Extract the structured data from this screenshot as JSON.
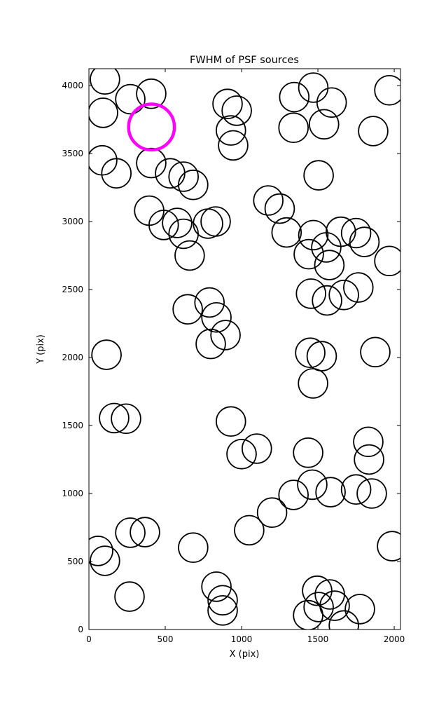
{
  "figure": {
    "title": "FWHM of PSF sources",
    "xlabel": "X (pix)",
    "ylabel": "Y (pix)"
  },
  "chart_data": {
    "type": "scatter",
    "title": "FWHM of PSF sources",
    "xlabel": "X (pix)",
    "ylabel": "Y (pix)",
    "xlim": [
      0,
      2041
    ],
    "ylim": [
      0,
      4124
    ],
    "x_ticks": [
      0,
      500,
      1000,
      1500,
      2000
    ],
    "y_ticks": [
      0,
      500,
      1000,
      1500,
      2000,
      2500,
      3000,
      3500,
      4000
    ],
    "grid": false,
    "legend": "none",
    "marker_style": "open-circle",
    "default_radius": 96,
    "default_color": "#000000",
    "default_linewidth": 1.8,
    "highlight": {
      "x": 410,
      "y": 3695,
      "r": 150,
      "color": "#ff00ff",
      "linewidth": 4.5
    },
    "points": [
      {
        "x": 105,
        "y": 4045
      },
      {
        "x": 92,
        "y": 3800
      },
      {
        "x": 271,
        "y": 3900
      },
      {
        "x": 408,
        "y": 3940
      },
      {
        "x": 908,
        "y": 3865
      },
      {
        "x": 968,
        "y": 3815
      },
      {
        "x": 930,
        "y": 3670
      },
      {
        "x": 945,
        "y": 3560
      },
      {
        "x": 1345,
        "y": 3915
      },
      {
        "x": 1470,
        "y": 3985
      },
      {
        "x": 1590,
        "y": 3875
      },
      {
        "x": 1340,
        "y": 3690
      },
      {
        "x": 1540,
        "y": 3715
      },
      {
        "x": 1968,
        "y": 3965
      },
      {
        "x": 1862,
        "y": 3665
      },
      {
        "x": 87,
        "y": 3450
      },
      {
        "x": 180,
        "y": 3355
      },
      {
        "x": 408,
        "y": 3430
      },
      {
        "x": 532,
        "y": 3355
      },
      {
        "x": 620,
        "y": 3330
      },
      {
        "x": 683,
        "y": 3270
      },
      {
        "x": 1505,
        "y": 3340
      },
      {
        "x": 395,
        "y": 3080
      },
      {
        "x": 490,
        "y": 2975
      },
      {
        "x": 578,
        "y": 2990
      },
      {
        "x": 620,
        "y": 2910
      },
      {
        "x": 780,
        "y": 2985
      },
      {
        "x": 830,
        "y": 3000
      },
      {
        "x": 1175,
        "y": 3155
      },
      {
        "x": 1250,
        "y": 3095
      },
      {
        "x": 1295,
        "y": 2920
      },
      {
        "x": 660,
        "y": 2750
      },
      {
        "x": 1470,
        "y": 2900
      },
      {
        "x": 1555,
        "y": 2810
      },
      {
        "x": 1650,
        "y": 2925
      },
      {
        "x": 1750,
        "y": 2915
      },
      {
        "x": 1805,
        "y": 2850
      },
      {
        "x": 1440,
        "y": 2760
      },
      {
        "x": 1575,
        "y": 2680
      },
      {
        "x": 1968,
        "y": 2710
      },
      {
        "x": 1455,
        "y": 2470
      },
      {
        "x": 1560,
        "y": 2420
      },
      {
        "x": 1670,
        "y": 2460
      },
      {
        "x": 1765,
        "y": 2515
      },
      {
        "x": 790,
        "y": 2405
      },
      {
        "x": 835,
        "y": 2295
      },
      {
        "x": 647,
        "y": 2355
      },
      {
        "x": 895,
        "y": 2165
      },
      {
        "x": 798,
        "y": 2100
      },
      {
        "x": 115,
        "y": 2020
      },
      {
        "x": 1450,
        "y": 2035
      },
      {
        "x": 1525,
        "y": 2010
      },
      {
        "x": 1876,
        "y": 2040
      },
      {
        "x": 1468,
        "y": 1810
      },
      {
        "x": 165,
        "y": 1555
      },
      {
        "x": 243,
        "y": 1550
      },
      {
        "x": 930,
        "y": 1530
      },
      {
        "x": 1000,
        "y": 1290
      },
      {
        "x": 1100,
        "y": 1330
      },
      {
        "x": 1436,
        "y": 1300
      },
      {
        "x": 1830,
        "y": 1380
      },
      {
        "x": 1835,
        "y": 1250
      },
      {
        "x": 1340,
        "y": 990
      },
      {
        "x": 1463,
        "y": 1065
      },
      {
        "x": 1583,
        "y": 1010
      },
      {
        "x": 1750,
        "y": 1030
      },
      {
        "x": 1853,
        "y": 1000
      },
      {
        "x": 1200,
        "y": 860
      },
      {
        "x": 1050,
        "y": 730
      },
      {
        "x": 271,
        "y": 712
      },
      {
        "x": 367,
        "y": 716
      },
      {
        "x": 60,
        "y": 578
      },
      {
        "x": 105,
        "y": 505
      },
      {
        "x": 683,
        "y": 602
      },
      {
        "x": 1986,
        "y": 613
      },
      {
        "x": 835,
        "y": 315
      },
      {
        "x": 876,
        "y": 215
      },
      {
        "x": 876,
        "y": 140
      },
      {
        "x": 266,
        "y": 242
      },
      {
        "x": 1495,
        "y": 285
      },
      {
        "x": 1578,
        "y": 258
      },
      {
        "x": 1505,
        "y": 165
      },
      {
        "x": 1610,
        "y": 175
      },
      {
        "x": 1436,
        "y": 105
      },
      {
        "x": 1775,
        "y": 150
      },
      {
        "x": 1670,
        "y": 30
      }
    ]
  }
}
